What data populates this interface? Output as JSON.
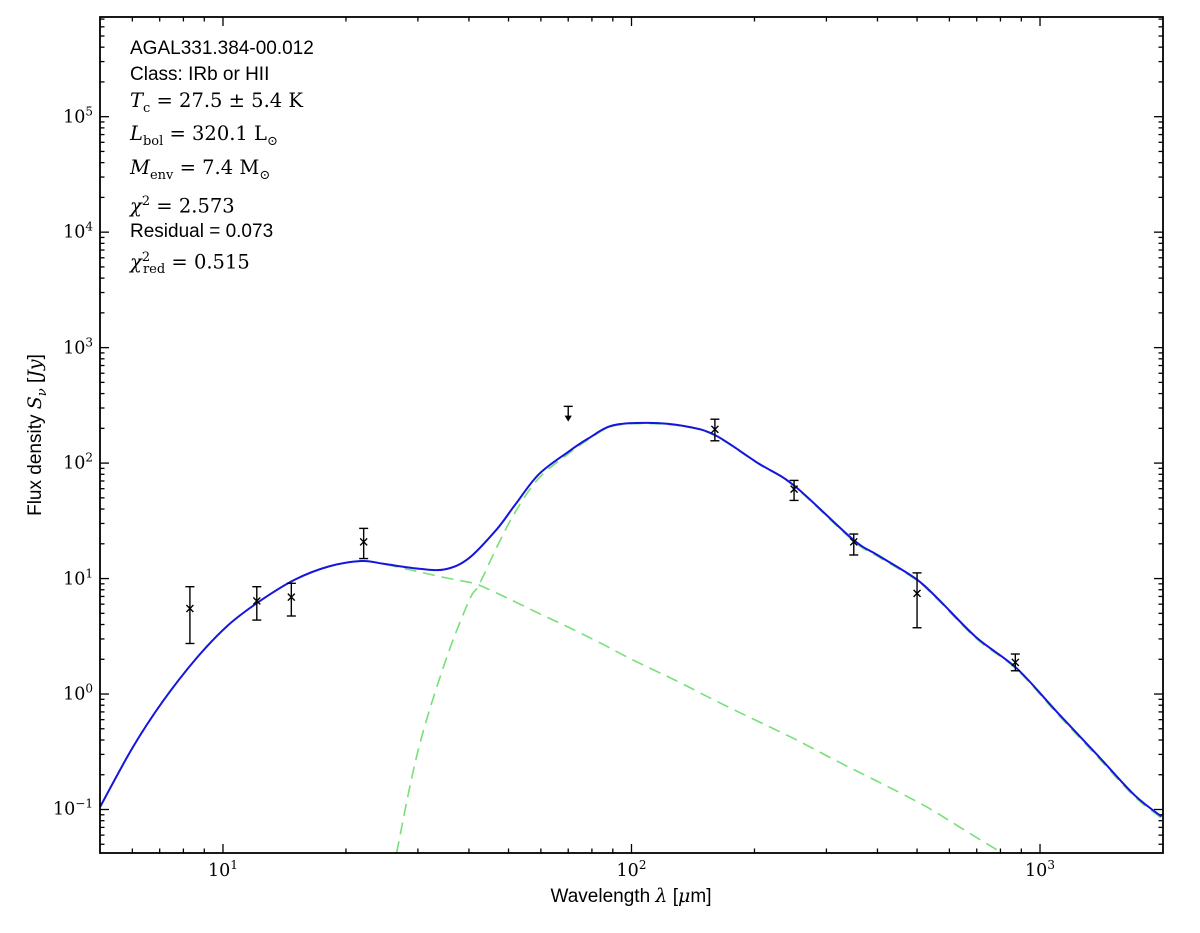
{
  "figure": {
    "background": "#ffffff",
    "annotation_lines": [
      {
        "cls": "sans",
        "html": "AGAL331.384-00.012"
      },
      {
        "cls": "sans",
        "html": "Class: IRb or HII"
      },
      {
        "cls": "math",
        "html": "<i>T</i><sub>c</sub> = 27.5 &#177; 5.4 K"
      },
      {
        "cls": "math",
        "html": "<i>L</i><sub>bol</sub> = 320.1 L<sub>&#8857;</sub>"
      },
      {
        "cls": "math",
        "html": "<i>M</i><sub>env</sub> = 7.4 M<sub>&#8857;</sub>"
      },
      {
        "cls": "math",
        "html": "<i>&#967;</i><sup>2</sup> = 2.573"
      },
      {
        "cls": "sans",
        "html": "Residual = 0.073"
      },
      {
        "cls": "math",
        "html": "<i>&#967;</i><sup>2</sup><sub class=\"stack\">red</sub> = 0.515"
      }
    ]
  },
  "axes": {
    "xlabel_html": "Wavelength <i>&#955;</i> [<i>&#956;</i>m]",
    "ylabel_html": "Flux density <i>S</i><sub><i>&#957;</i></sub> [<i>Jy</i>]",
    "x_scale": "log",
    "y_scale": "log",
    "x_tick_exponents": [
      1,
      2,
      3
    ],
    "y_tick_exponents": [
      -1,
      0,
      1,
      2,
      3,
      4,
      5
    ]
  },
  "chart_data": {
    "type": "line",
    "title": "",
    "xlabel": "Wavelength lambda [micron]",
    "ylabel": "Flux density S_nu [Jy]",
    "xlim": [
      5,
      2000
    ],
    "ylim": [
      0.042,
      730000
    ],
    "grid": false,
    "legend": "none",
    "colors": {
      "total_model": "#1515dd",
      "components": "#77e077",
      "data_points": "#000000"
    },
    "series": [
      {
        "name": "total-model",
        "style": "solid",
        "color_key": "total_model",
        "points": [
          [
            5,
            0.105
          ],
          [
            6,
            0.34
          ],
          [
            7.1,
            0.85
          ],
          [
            8.6,
            2.03
          ],
          [
            10.3,
            3.95
          ],
          [
            12.4,
            6.5
          ],
          [
            15,
            9.8
          ],
          [
            18.1,
            12.7
          ],
          [
            21.8,
            14.2
          ],
          [
            24.8,
            13.4
          ],
          [
            30,
            12.2
          ],
          [
            34.9,
            12.0
          ],
          [
            40,
            15.0
          ],
          [
            46.9,
            27
          ],
          [
            52,
            44
          ],
          [
            59.3,
            80
          ],
          [
            70,
            125
          ],
          [
            78.5,
            164
          ],
          [
            90,
            212
          ],
          [
            110,
            223
          ],
          [
            135,
            209
          ],
          [
            160,
            175
          ],
          [
            204,
            100
          ],
          [
            250,
            64
          ],
          [
            348,
            21.9
          ],
          [
            400,
            16.0
          ],
          [
            496,
            10.0
          ],
          [
            561,
            6.74
          ],
          [
            700,
            3.07
          ],
          [
            877,
            1.67
          ],
          [
            1100,
            0.7
          ],
          [
            1377,
            0.3
          ],
          [
            1700,
            0.134
          ],
          [
            1984,
            0.087
          ]
        ]
      },
      {
        "name": "cold-component",
        "style": "dashed",
        "color_key": "components",
        "points": [
          [
            26.6,
            0.042
          ],
          [
            30,
            0.32
          ],
          [
            35,
            1.9
          ],
          [
            40,
            6.4
          ],
          [
            42.3,
            8.8
          ],
          [
            46.9,
            19
          ],
          [
            52,
            38
          ],
          [
            59.3,
            74
          ],
          [
            70,
            120
          ],
          [
            78.5,
            160
          ],
          [
            90,
            209
          ],
          [
            110,
            220
          ],
          [
            135,
            207
          ],
          [
            160,
            173
          ],
          [
            204,
            99
          ],
          [
            250,
            63
          ],
          [
            348,
            21.4
          ],
          [
            400,
            15.6
          ],
          [
            496,
            9.8
          ],
          [
            561,
            6.6
          ],
          [
            700,
            3.0
          ],
          [
            877,
            1.63
          ],
          [
            1100,
            0.68
          ],
          [
            1377,
            0.29
          ],
          [
            1700,
            0.13
          ],
          [
            1984,
            0.084
          ]
        ]
      },
      {
        "name": "warm-component",
        "style": "dashed",
        "color_key": "components",
        "points": [
          [
            5,
            0.105
          ],
          [
            6,
            0.34
          ],
          [
            7.1,
            0.85
          ],
          [
            8.6,
            2.03
          ],
          [
            10.3,
            3.95
          ],
          [
            12.4,
            6.5
          ],
          [
            15,
            9.8
          ],
          [
            18.1,
            12.7
          ],
          [
            21.8,
            14.2
          ],
          [
            24.8,
            13.3
          ],
          [
            30,
            11.5
          ],
          [
            34.9,
            10.2
          ],
          [
            40,
            9.3
          ],
          [
            42.3,
            8.8
          ],
          [
            50,
            6.7
          ],
          [
            60,
            4.9
          ],
          [
            70,
            3.8
          ],
          [
            85,
            2.7
          ],
          [
            100,
            2.0
          ],
          [
            130,
            1.28
          ],
          [
            160,
            0.88
          ],
          [
            200,
            0.6
          ],
          [
            250,
            0.41
          ],
          [
            320,
            0.26
          ],
          [
            400,
            0.175
          ],
          [
            500,
            0.117
          ],
          [
            560,
            0.093
          ],
          [
            650,
            0.067
          ],
          [
            807,
            0.042
          ]
        ]
      }
    ],
    "data_points": [
      {
        "wavelength_um": 8.3,
        "flux_jy": 5.5,
        "err_hi_jy": 8.5,
        "err_lo_jy": 2.74
      },
      {
        "wavelength_um": 12.1,
        "flux_jy": 6.4,
        "err_hi_jy": 8.5,
        "err_lo_jy": 4.37
      },
      {
        "wavelength_um": 14.7,
        "flux_jy": 6.9,
        "err_hi_jy": 9.1,
        "err_lo_jy": 4.74
      },
      {
        "wavelength_um": 22.1,
        "flux_jy": 20.8,
        "err_hi_jy": 27.2,
        "err_lo_jy": 14.9
      },
      {
        "wavelength_um": 160,
        "flux_jy": 196,
        "err_hi_jy": 240,
        "err_lo_jy": 156
      },
      {
        "wavelength_um": 250,
        "flux_jy": 59.5,
        "err_hi_jy": 70.8,
        "err_lo_jy": 47.5
      },
      {
        "wavelength_um": 350,
        "flux_jy": 20.8,
        "err_hi_jy": 24.3,
        "err_lo_jy": 16.0
      },
      {
        "wavelength_um": 500,
        "flux_jy": 7.45,
        "err_hi_jy": 11.2,
        "err_lo_jy": 3.75
      },
      {
        "wavelength_um": 870,
        "flux_jy": 1.88,
        "err_hi_jy": 2.22,
        "err_lo_jy": 1.59
      }
    ],
    "upper_limits": [
      {
        "wavelength_um": 70,
        "flux_jy": 310,
        "arrow_tip_jy": 233
      }
    ]
  }
}
